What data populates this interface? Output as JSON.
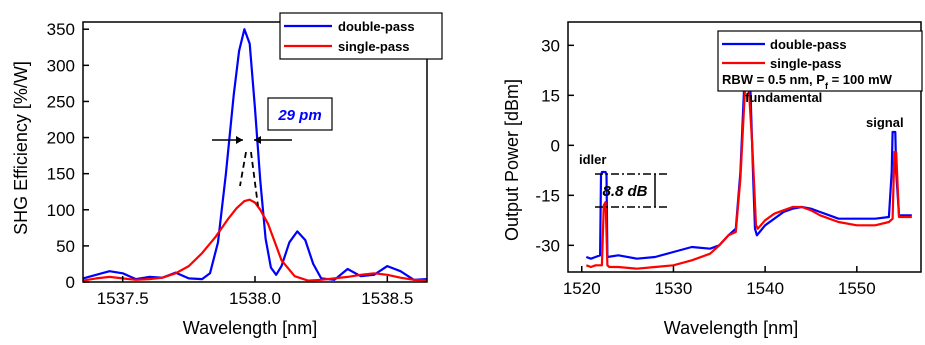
{
  "chart_data": [
    {
      "type": "line",
      "xlabel": "Wavelength [nm]",
      "ylabel": "SHG Efficiency [%/W]",
      "xlim": [
        1537.35,
        1538.65
      ],
      "ylim": [
        0,
        360
      ],
      "xticks": [
        1537.5,
        1538.0,
        1538.5
      ],
      "xtick_labels": [
        "1537.5",
        "1538.0",
        "1538.5"
      ],
      "yticks": [
        0,
        50,
        100,
        150,
        200,
        250,
        300,
        350
      ],
      "ytick_labels": [
        "0",
        "50",
        "100",
        "150",
        "200",
        "250",
        "300",
        "350"
      ],
      "legend": "top-right",
      "grid": false,
      "series": [
        {
          "name": "double-pass",
          "color": "#0000ff",
          "x": [
            1537.35,
            1537.4,
            1537.45,
            1537.5,
            1537.55,
            1537.6,
            1537.65,
            1537.7,
            1537.75,
            1537.8,
            1537.83,
            1537.86,
            1537.89,
            1537.92,
            1537.94,
            1537.96,
            1537.98,
            1538.0,
            1538.02,
            1538.04,
            1538.06,
            1538.08,
            1538.1,
            1538.13,
            1538.16,
            1538.19,
            1538.22,
            1538.25,
            1538.3,
            1538.35,
            1538.4,
            1538.45,
            1538.5,
            1538.55,
            1538.6,
            1538.65
          ],
          "y": [
            5,
            10,
            15,
            12,
            4,
            7,
            6,
            13,
            5,
            4,
            12,
            55,
            150,
            260,
            320,
            350,
            330,
            240,
            140,
            60,
            20,
            10,
            22,
            55,
            70,
            58,
            25,
            5,
            3,
            18,
            8,
            10,
            22,
            15,
            3,
            4
          ]
        },
        {
          "name": "single-pass",
          "color": "#ff0000",
          "x": [
            1537.35,
            1537.4,
            1537.45,
            1537.5,
            1537.55,
            1537.6,
            1537.65,
            1537.7,
            1537.75,
            1537.8,
            1537.85,
            1537.9,
            1537.93,
            1537.96,
            1537.98,
            1538.0,
            1538.02,
            1538.05,
            1538.08,
            1538.1,
            1538.15,
            1538.2,
            1538.25,
            1538.3,
            1538.35,
            1538.4,
            1538.45,
            1538.5,
            1538.55,
            1538.6,
            1538.65
          ],
          "y": [
            2,
            5,
            7,
            5,
            3,
            4,
            6,
            12,
            22,
            40,
            62,
            88,
            102,
            112,
            114,
            110,
            100,
            80,
            50,
            30,
            8,
            2,
            3,
            5,
            7,
            10,
            12,
            10,
            6,
            3,
            2
          ]
        }
      ],
      "annotations": [
        "29 pm"
      ]
    },
    {
      "type": "line",
      "xlabel": "Wavelength [nm]",
      "ylabel": "Output Power [dBm]",
      "xlim": [
        1518.5,
        1557
      ],
      "ylim": [
        -38,
        37
      ],
      "xticks": [
        1520,
        1530,
        1540,
        1550
      ],
      "xtick_labels": [
        "1520",
        "1530",
        "1540",
        "1550"
      ],
      "yticks": [
        -30,
        -15,
        0,
        15,
        30
      ],
      "ytick_labels": [
        "-30",
        "-15",
        "0",
        "15",
        "30"
      ],
      "legend": "top-right",
      "grid": false,
      "legend_note_prefix": "RBW = 0.5 nm, P",
      "legend_note_sub": "f",
      "legend_note_suffix": " = 100 mW",
      "series": [
        {
          "name": "double-pass",
          "color": "#0000ff",
          "x": [
            1520.5,
            1521,
            1521.5,
            1522,
            1522.1,
            1522.2,
            1522.6,
            1522.7,
            1522.8,
            1524,
            1526,
            1528,
            1530,
            1532,
            1534,
            1535,
            1536,
            1536.8,
            1537.3,
            1537.7,
            1538.0,
            1538.4,
            1538.7,
            1538.9,
            1539.1,
            1540,
            1541,
            1542,
            1543,
            1544,
            1545,
            1546,
            1547,
            1548,
            1550,
            1552,
            1553.5,
            1553.8,
            1553.9,
            1554.2,
            1554.3,
            1554.6,
            1555,
            1556
          ],
          "y": [
            -33.5,
            -34,
            -33.5,
            -33,
            -9,
            -8,
            -8,
            -9,
            -33.5,
            -33,
            -34,
            -33.5,
            -32,
            -30.5,
            -31,
            -30,
            -27,
            -25,
            -8,
            16.5,
            17,
            16,
            -10,
            -25,
            -27,
            -24,
            -22,
            -20,
            -19,
            -18.5,
            -19,
            -20,
            -21,
            -22,
            -22,
            -22,
            -21.5,
            -8,
            4,
            4,
            -8,
            -21,
            -21,
            -21
          ]
        },
        {
          "name": "single-pass",
          "color": "#ff0000",
          "x": [
            1520.5,
            1521,
            1521.5,
            1522.2,
            1522.4,
            1522.6,
            1522.8,
            1523,
            1524,
            1526,
            1528,
            1530,
            1532,
            1534,
            1535,
            1536,
            1536.8,
            1537.3,
            1537.8,
            1538.2,
            1538.6,
            1539.0,
            1539.2,
            1540,
            1541,
            1542,
            1543,
            1544,
            1545,
            1546,
            1547,
            1548,
            1550,
            1552,
            1553.5,
            1553.9,
            1554.1,
            1554.3,
            1554.6,
            1555,
            1556
          ],
          "y": [
            -36,
            -36.5,
            -36,
            -36,
            -18,
            -17,
            -36,
            -36.5,
            -36.5,
            -37,
            -36.5,
            -36,
            -34.5,
            -32.5,
            -30,
            -27,
            -26,
            -10,
            17,
            18,
            0,
            -24,
            -25,
            -22.5,
            -20.5,
            -19.5,
            -18.5,
            -18.5,
            -19.5,
            -21,
            -22,
            -23,
            -24,
            -24,
            -23,
            -22,
            -2,
            -2,
            -21.5,
            -21.5,
            -21.5
          ]
        }
      ],
      "annotations": [
        "idler",
        "fundamental",
        "signal",
        "8.8 dB"
      ]
    }
  ]
}
